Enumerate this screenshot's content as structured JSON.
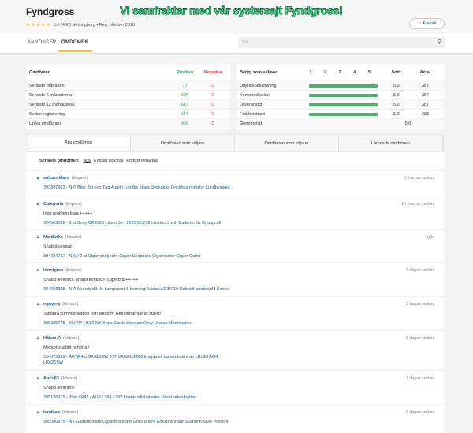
{
  "header": {
    "title": "Fyndgross",
    "stars": "★★★★★",
    "rating": "5,0 (466) Helsingborg • Reg. oktober 2018",
    "banner": "Vi samfraktar med vår systersajt Fyndgross!",
    "favorite_label": "Favorit",
    "favorite_icon": "star-outline-icon"
  },
  "nav": {
    "tabs": [
      "ANNONSER",
      "OMDÖMEN"
    ],
    "active": "OMDÖMEN",
    "search_placeholder": "Sök",
    "search_icon": "search-icon"
  },
  "summary": {
    "headers": [
      "Omdömen",
      "Positiva",
      "Negativa"
    ],
    "rows": [
      [
        "Senaste månaden",
        "77",
        "0"
      ],
      [
        "Senaste 6 månaderna",
        "525",
        "0"
      ],
      [
        "Senaste 12 månaderna",
        "617",
        "0"
      ],
      [
        "Sedan registrering",
        "617",
        "0"
      ],
      [
        "Unika omdömen",
        "466",
        "0"
      ]
    ]
  },
  "seller_rating": {
    "headers": [
      "Betyg som säljare",
      "1",
      "2",
      "3",
      "4",
      "5",
      "Snitt",
      "Antal"
    ],
    "rows": [
      {
        "label": "Objektsbeskrivning",
        "score": 5.0,
        "avg": "5,0",
        "count": "387"
      },
      {
        "label": "Kommunikation",
        "score": 5.0,
        "avg": "5,0",
        "count": "387"
      },
      {
        "label": "Leveranstid",
        "score": 5.0,
        "avg": "5,0",
        "count": "387"
      },
      {
        "label": "Fraktkostnad",
        "score": 5.0,
        "avg": "5,0",
        "count": "388"
      }
    ],
    "overall_label": "Genomsnitt",
    "overall_avg": "5,0",
    "colors": {
      "bar": "#4caf6e"
    }
  },
  "review_tabs": [
    "Alla omdömen",
    "Omdömen som säljare",
    "Omdömen som köpare",
    "Lämnade omdömen"
  ],
  "filter": {
    "label": "Senaste omdömen:",
    "options": [
      "Alla",
      "Endast positiva",
      "Endast negativa"
    ],
    "active": "Alla"
  },
  "reviews": [
    {
      "user": "vulcanriders",
      "role": "(köpare)",
      "time": "5 timmar sedan",
      "text": "",
      "item": "393387663 - NY! Bilar 3st och Tåg 4-del i Lundby skala Dockskåp Dockhus miniatyr Lundbyskala"
    },
    {
      "user": "Categoria",
      "role": "(köpare)",
      "time": "10 timmar sedan",
      "text": "Inga problem bara +++++",
      "item": "394503596 - 3 st Sony CR2025 Litium 3v - 2025 DL2025 batteri 3 volt Batterier 3v Knappcell"
    },
    {
      "user": "MattEriks",
      "role": "(köpare)",
      "time": "i går",
      "text": "Snabbt skickat",
      "item": "394734747 - NYA! 2 st Cigarrsnoppare Cigarr Snoppare Cigarrcutter Cigarr Cutter"
    },
    {
      "user": "looofgren",
      "role": "(köpare)",
      "time": "2 dagar sedan",
      "text": "Snabb leverans, snabb kontakt!! Superbra +++++",
      "item": "394998908 - NY! Munskydd för kampsport & boxning Adidas ADIBP10 Dubbelt tandskydd Senior"
    },
    {
      "user": "nguyenj",
      "role": "(köpare)",
      "time": "2 dagar sedan",
      "text": "Jättebra kommunikation och support. Rekommenderar starkt!",
      "item": "390335775 - KLIPP! HELT NY Keps Cords Onesize Grey Unisex Manchester"
    },
    {
      "user": "Håkan.R",
      "role": "(köpare)",
      "time": "2 dagar sedan",
      "text": "Mycket snabbt och bra !",
      "item": "394579038 - ÄKTA 4st SR626SW 377 SR626 SR66 knappcell batteri bättre än LR626 AG4 LR626SW"
    },
    {
      "user": "Anci-63",
      "role": "(köpare)",
      "time": "2 dagar sedan",
      "text": "Snabb leverans!",
      "item": "395126915 - 30st LR41 / AG3 / 384 / 392 knappcellsbatterier klockbatteri batteri"
    },
    {
      "user": "lundåsa",
      "role": "(köpare)",
      "time": "3 dagar sedan",
      "text": "",
      "item": "395580975 - NY Gasbrännare Ogräsbrännare Grillstartare Köksbrännare Skandi Kvalité Present"
    }
  ]
}
